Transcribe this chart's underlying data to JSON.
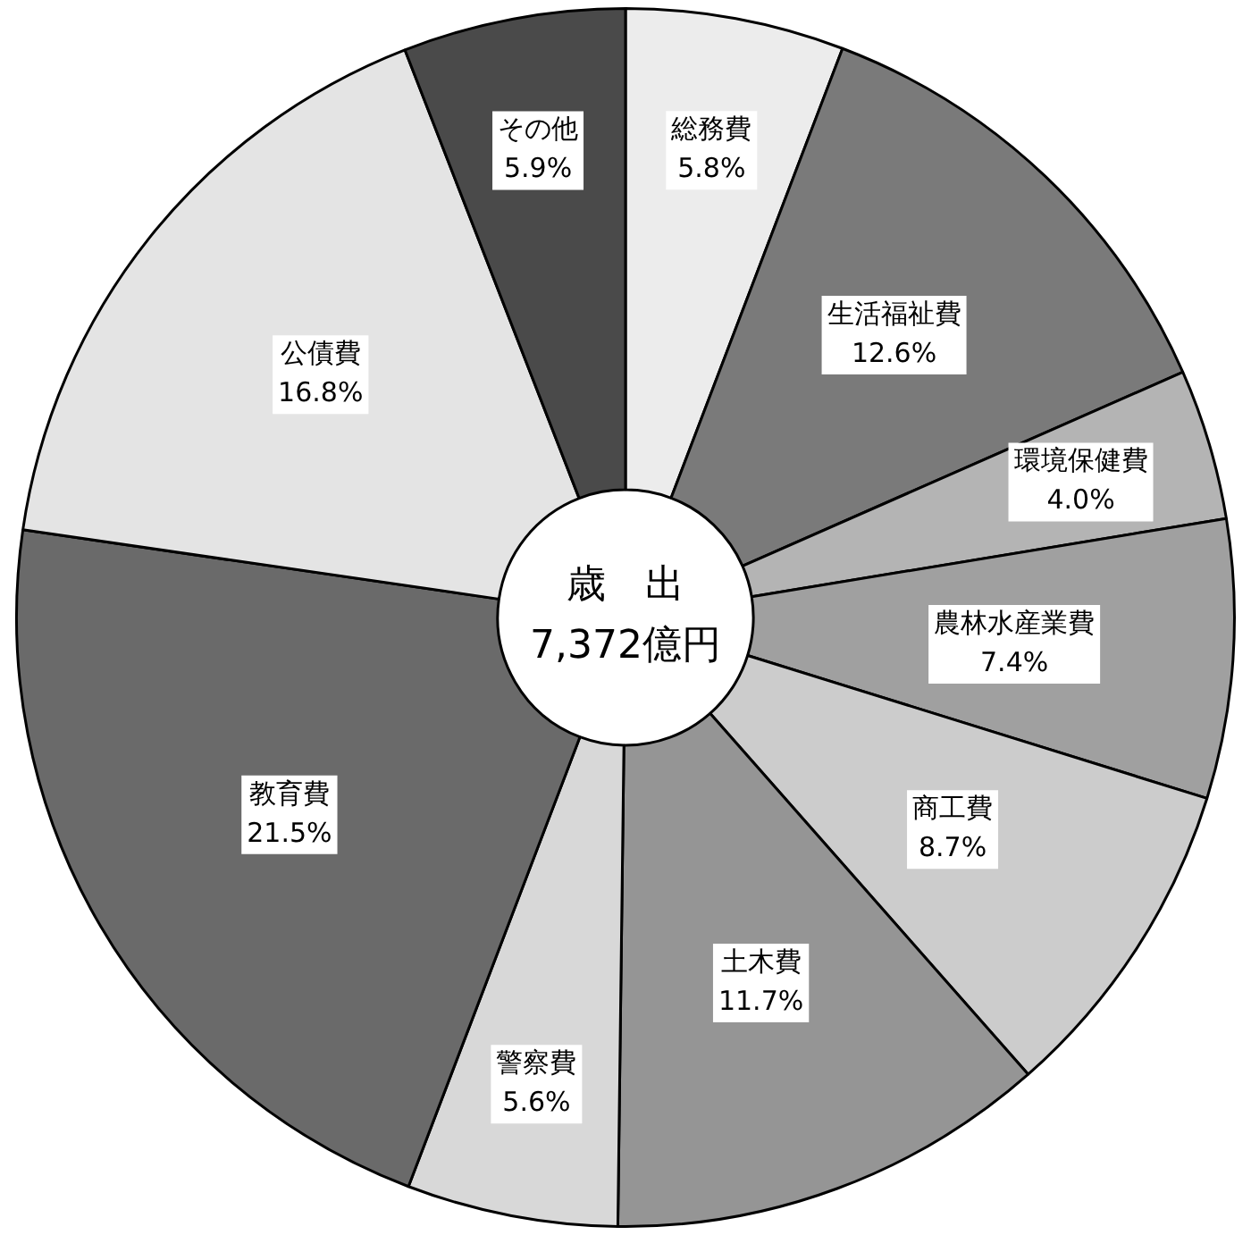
{
  "chart_data": {
    "type": "donut",
    "categories": [
      "総務費",
      "生活福祉費",
      "環境保健費",
      "農林水産業費",
      "商工費",
      "土木費",
      "警察費",
      "教育費",
      "公債費",
      "その他"
    ],
    "values": [
      5.8,
      12.6,
      4.0,
      7.4,
      8.7,
      11.7,
      5.6,
      21.5,
      16.8,
      5.9
    ],
    "value_labels": [
      "5.8%",
      "12.6%",
      "4.0%",
      "7.4%",
      "8.7%",
      "11.7%",
      "5.6%",
      "21.5%",
      "16.8%",
      "5.9%"
    ],
    "colors": [
      "#ececec",
      "#7a7a7a",
      "#b4b4b4",
      "#a0a0a0",
      "#cccccc",
      "#959595",
      "#d8d8d8",
      "#6a6a6a",
      "#e4e4e4",
      "#4a4a4a"
    ],
    "annotations": [
      "歳　出",
      "7,372億円"
    ],
    "legend": false
  }
}
